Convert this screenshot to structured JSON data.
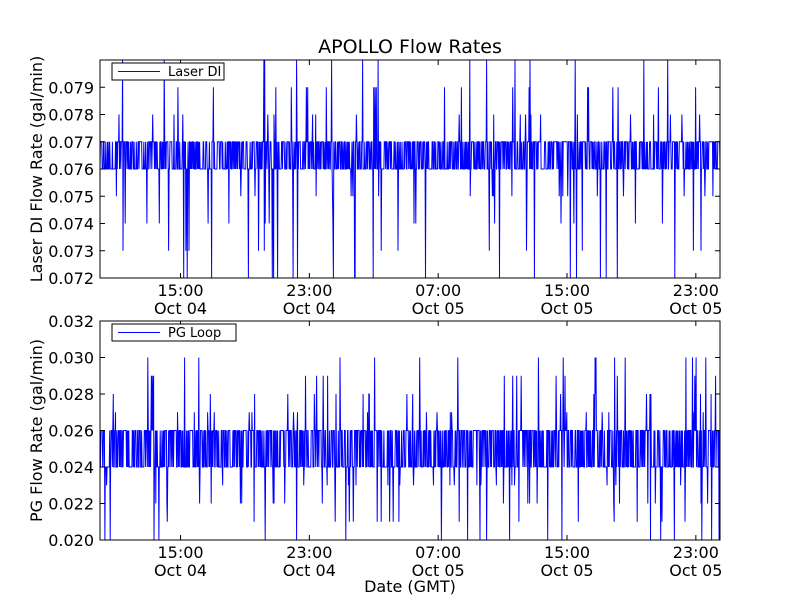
{
  "figure": {
    "title": "APOLLO Flow Rates",
    "xlabel": "Date (GMT)"
  },
  "chart_data": [
    {
      "type": "line",
      "title": "APOLLO Flow Rates",
      "xlabel": "",
      "ylabel": "Laser DI Flow Rate (gal/min)",
      "ylim": [
        0.072,
        0.08
      ],
      "yticks": [
        {
          "value": 0.072,
          "label": "0.072"
        },
        {
          "value": 0.073,
          "label": "0.073"
        },
        {
          "value": 0.074,
          "label": "0.074"
        },
        {
          "value": 0.075,
          "label": "0.075"
        },
        {
          "value": 0.076,
          "label": "0.076"
        },
        {
          "value": 0.077,
          "label": "0.077"
        },
        {
          "value": 0.078,
          "label": "0.078"
        },
        {
          "value": 0.079,
          "label": "0.079"
        }
      ],
      "xlim": [
        "2010-10-04T10:00",
        "2010-10-06T00:30"
      ],
      "xticks": [
        {
          "value": "2010-10-04T15:00",
          "time": "15:00",
          "date": "Oct 04"
        },
        {
          "value": "2010-10-04T23:00",
          "time": "23:00",
          "date": "Oct 04"
        },
        {
          "value": "2010-10-05T07:00",
          "time": "07:00",
          "date": "Oct 05"
        },
        {
          "value": "2010-10-05T15:00",
          "time": "15:00",
          "date": "Oct 05"
        },
        {
          "value": "2010-10-05T23:00",
          "time": "23:00",
          "date": "Oct 05"
        }
      ],
      "legend": {
        "position": "top-left",
        "entries": [
          "Laser DI"
        ]
      },
      "grid": false,
      "series": [
        {
          "name": "Laser DI",
          "color": "#0000ff",
          "band": [
            0.076,
            0.077
          ],
          "spike_levels": [
            0.072,
            0.073,
            0.074,
            0.075,
            0.078,
            0.079,
            0.08
          ],
          "points": [
            [
              "2010-10-04T10:00",
              0.0765
            ],
            [
              "2010-10-04T11:00",
              0.0775
            ],
            [
              "2010-10-04T12:00",
              0.0765
            ],
            [
              "2010-10-04T13:00",
              0.076
            ],
            [
              "2010-10-04T14:00",
              0.077
            ],
            [
              "2010-10-04T15:00",
              0.0765
            ],
            [
              "2010-10-04T16:00",
              0.0765
            ],
            [
              "2010-10-04T17:00",
              0.077
            ],
            [
              "2010-10-04T18:00",
              0.0765
            ],
            [
              "2010-10-04T19:00",
              0.076
            ],
            [
              "2010-10-04T20:00",
              0.0765
            ],
            [
              "2010-10-04T21:00",
              0.077
            ],
            [
              "2010-10-04T22:00",
              0.0765
            ],
            [
              "2010-10-04T23:00",
              0.0765
            ],
            [
              "2010-10-05T00:00",
              0.076
            ],
            [
              "2010-10-05T01:00",
              0.077
            ],
            [
              "2010-10-05T02:00",
              0.0765
            ],
            [
              "2010-10-05T03:00",
              0.0765
            ],
            [
              "2010-10-05T04:00",
              0.077
            ],
            [
              "2010-10-05T05:00",
              0.0765
            ],
            [
              "2010-10-05T06:00",
              0.076
            ],
            [
              "2010-10-05T07:00",
              0.0765
            ],
            [
              "2010-10-05T08:00",
              0.077
            ],
            [
              "2010-10-05T09:00",
              0.0765
            ],
            [
              "2010-10-05T10:00",
              0.0765
            ],
            [
              "2010-10-05T11:00",
              0.076
            ],
            [
              "2010-10-05T12:00",
              0.077
            ],
            [
              "2010-10-05T13:00",
              0.0765
            ],
            [
              "2010-10-05T14:00",
              0.0765
            ],
            [
              "2010-10-05T15:00",
              0.077
            ],
            [
              "2010-10-05T16:00",
              0.0765
            ],
            [
              "2010-10-05T17:00",
              0.076
            ],
            [
              "2010-10-05T18:00",
              0.0765
            ],
            [
              "2010-10-05T19:00",
              0.077
            ],
            [
              "2010-10-05T20:00",
              0.0765
            ],
            [
              "2010-10-05T21:00",
              0.0765
            ],
            [
              "2010-10-05T22:00",
              0.076
            ],
            [
              "2010-10-05T23:00",
              0.077
            ],
            [
              "2010-10-06T00:00",
              0.0765
            ]
          ]
        }
      ]
    },
    {
      "type": "line",
      "title": "",
      "xlabel": "Date (GMT)",
      "ylabel": "PG Flow Rate (gal/min)",
      "ylim": [
        0.02,
        0.032
      ],
      "yticks": [
        {
          "value": 0.02,
          "label": "0.020"
        },
        {
          "value": 0.022,
          "label": "0.022"
        },
        {
          "value": 0.024,
          "label": "0.024"
        },
        {
          "value": 0.026,
          "label": "0.026"
        },
        {
          "value": 0.028,
          "label": "0.028"
        },
        {
          "value": 0.03,
          "label": "0.030"
        },
        {
          "value": 0.032,
          "label": "0.032"
        }
      ],
      "xlim": [
        "2010-10-04T10:00",
        "2010-10-06T00:30"
      ],
      "xticks": [
        {
          "value": "2010-10-04T15:00",
          "time": "15:00",
          "date": "Oct 04"
        },
        {
          "value": "2010-10-04T23:00",
          "time": "23:00",
          "date": "Oct 04"
        },
        {
          "value": "2010-10-05T07:00",
          "time": "07:00",
          "date": "Oct 05"
        },
        {
          "value": "2010-10-05T15:00",
          "time": "15:00",
          "date": "Oct 05"
        },
        {
          "value": "2010-10-05T23:00",
          "time": "23:00",
          "date": "Oct 05"
        }
      ],
      "legend": {
        "position": "top-left",
        "entries": [
          "PG Loop"
        ]
      },
      "grid": false,
      "series": [
        {
          "name": "PG Loop",
          "color": "#0000ff",
          "band": [
            0.024,
            0.026
          ],
          "spike_levels": [
            0.02,
            0.021,
            0.022,
            0.023,
            0.027,
            0.028,
            0.029,
            0.03
          ],
          "points": [
            [
              "2010-10-04T10:00",
              0.025
            ],
            [
              "2010-10-04T11:00",
              0.0255
            ],
            [
              "2010-10-04T12:00",
              0.0245
            ],
            [
              "2010-10-04T13:00",
              0.025
            ],
            [
              "2010-10-04T14:00",
              0.0255
            ],
            [
              "2010-10-04T15:00",
              0.025
            ],
            [
              "2010-10-04T16:00",
              0.0245
            ],
            [
              "2010-10-04T17:00",
              0.025
            ],
            [
              "2010-10-04T18:00",
              0.0255
            ],
            [
              "2010-10-04T19:00",
              0.025
            ],
            [
              "2010-10-04T20:00",
              0.025
            ],
            [
              "2010-10-04T21:00",
              0.0245
            ],
            [
              "2010-10-04T22:00",
              0.0255
            ],
            [
              "2010-10-04T23:00",
              0.025
            ],
            [
              "2010-10-05T00:00",
              0.025
            ],
            [
              "2010-10-05T01:00",
              0.0255
            ],
            [
              "2010-10-05T02:00",
              0.0245
            ],
            [
              "2010-10-05T03:00",
              0.025
            ],
            [
              "2010-10-05T04:00",
              0.025
            ],
            [
              "2010-10-05T05:00",
              0.0255
            ],
            [
              "2010-10-05T06:00",
              0.025
            ],
            [
              "2010-10-05T07:00",
              0.0245
            ],
            [
              "2010-10-05T08:00",
              0.025
            ],
            [
              "2010-10-05T09:00",
              0.0255
            ],
            [
              "2010-10-05T10:00",
              0.025
            ],
            [
              "2010-10-05T11:00",
              0.025
            ],
            [
              "2010-10-05T12:00",
              0.0245
            ],
            [
              "2010-10-05T13:00",
              0.0255
            ],
            [
              "2010-10-05T14:00",
              0.025
            ],
            [
              "2010-10-05T15:00",
              0.025
            ],
            [
              "2010-10-05T16:00",
              0.0255
            ],
            [
              "2010-10-05T17:00",
              0.0245
            ],
            [
              "2010-10-05T18:00",
              0.025
            ],
            [
              "2010-10-05T19:00",
              0.025
            ],
            [
              "2010-10-05T20:00",
              0.0255
            ],
            [
              "2010-10-05T21:00",
              0.025
            ],
            [
              "2010-10-05T22:00",
              0.0245
            ],
            [
              "2010-10-05T23:00",
              0.025
            ],
            [
              "2010-10-06T00:00",
              0.0255
            ]
          ]
        }
      ]
    }
  ]
}
